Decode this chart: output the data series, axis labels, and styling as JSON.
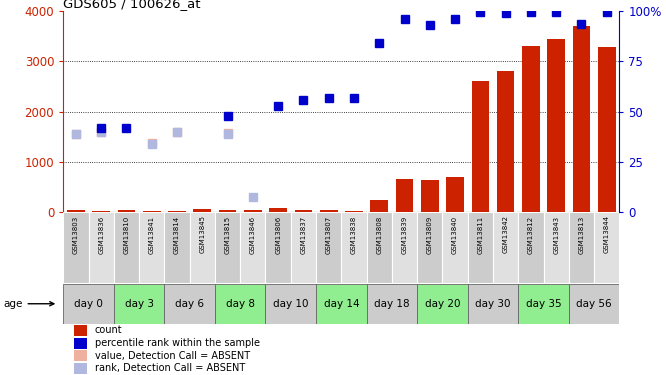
{
  "title": "GDS605 / 100626_at",
  "gsm_labels": [
    "GSM13803",
    "GSM13836",
    "GSM13810",
    "GSM13841",
    "GSM13814",
    "GSM13845",
    "GSM13815",
    "GSM13846",
    "GSM13806",
    "GSM13837",
    "GSM13807",
    "GSM13838",
    "GSM13808",
    "GSM13839",
    "GSM13809",
    "GSM13840",
    "GSM13811",
    "GSM13842",
    "GSM13812",
    "GSM13843",
    "GSM13813",
    "GSM13844"
  ],
  "age_groups": [
    {
      "label": "day 0",
      "start": 0,
      "end": 2,
      "green": false
    },
    {
      "label": "day 3",
      "start": 2,
      "end": 4,
      "green": true
    },
    {
      "label": "day 6",
      "start": 4,
      "end": 6,
      "green": false
    },
    {
      "label": "day 8",
      "start": 6,
      "end": 8,
      "green": true
    },
    {
      "label": "day 10",
      "start": 8,
      "end": 10,
      "green": false
    },
    {
      "label": "day 14",
      "start": 10,
      "end": 12,
      "green": true
    },
    {
      "label": "day 18",
      "start": 12,
      "end": 14,
      "green": false
    },
    {
      "label": "day 20",
      "start": 14,
      "end": 16,
      "green": true
    },
    {
      "label": "day 30",
      "start": 16,
      "end": 18,
      "green": false
    },
    {
      "label": "day 35",
      "start": 18,
      "end": 20,
      "green": true
    },
    {
      "label": "day 56",
      "start": 20,
      "end": 22,
      "green": false
    }
  ],
  "count_values": [
    30,
    25,
    30,
    20,
    25,
    60,
    30,
    30,
    75,
    30,
    30,
    25,
    230,
    660,
    645,
    690,
    2610,
    2800,
    3310,
    3450,
    3700,
    3290
  ],
  "percentile_values": [
    null,
    42,
    42,
    null,
    null,
    null,
    48,
    null,
    53,
    56,
    57,
    57,
    84,
    96,
    93,
    96,
    99.5,
    99,
    99.5,
    99.8,
    93.5,
    99.8
  ],
  "absent_count_values": [
    1560,
    1600,
    null,
    1370,
    1600,
    null,
    1580,
    null,
    null,
    null,
    null,
    null,
    null,
    null,
    null,
    null,
    null,
    null,
    null,
    null,
    null,
    null
  ],
  "absent_rank_values": [
    39,
    40,
    null,
    34,
    40,
    null,
    39,
    7.5,
    null,
    null,
    null,
    null,
    null,
    null,
    null,
    null,
    null,
    null,
    null,
    null,
    null,
    null
  ],
  "ylim": [
    0,
    4000
  ],
  "y2lim": [
    0,
    100
  ],
  "bar_color": "#cc2200",
  "present_rank_color": "#0000cc",
  "absent_count_color": "#f0b0a0",
  "absent_rank_color": "#b0b8e0",
  "legend_items": [
    {
      "color": "#cc2200",
      "label": "count"
    },
    {
      "color": "#0000cc",
      "label": "percentile rank within the sample"
    },
    {
      "color": "#f0b0a0",
      "label": "value, Detection Call = ABSENT"
    },
    {
      "color": "#b0b8e0",
      "label": "rank, Detection Call = ABSENT"
    }
  ]
}
